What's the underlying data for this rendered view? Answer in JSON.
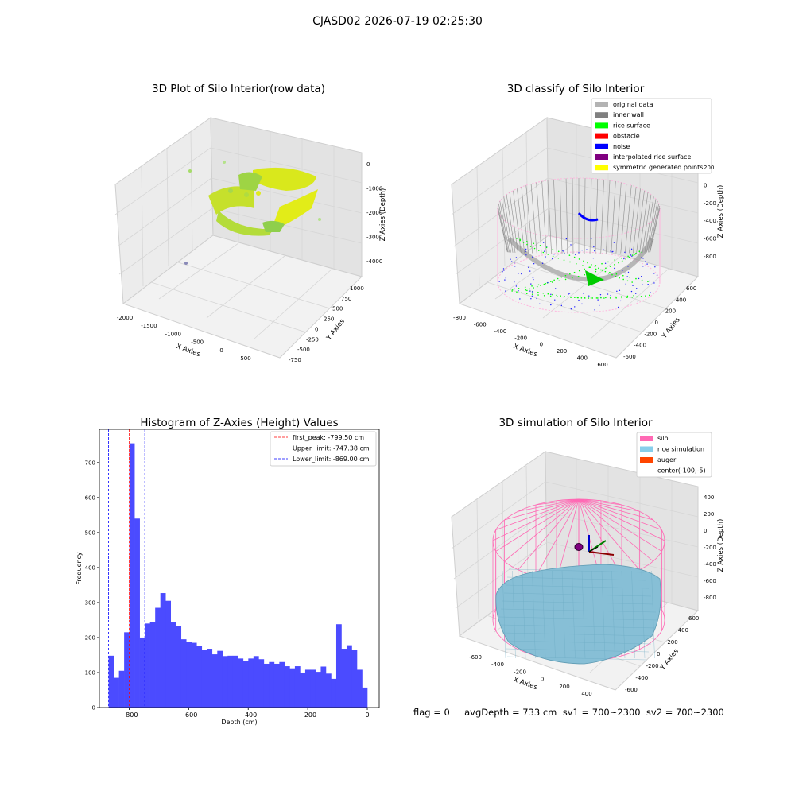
{
  "figure": {
    "suptitle": "CJASD02 2026-07-19 02:25:30",
    "status_line": "flag = 0     avgDepth = 733 cm  sv1 = 700~2300  sv2 = 700~2300"
  },
  "colors": {
    "pane_grey": "#eeeeee",
    "grid": "#d6d6d6",
    "hist_blue": "#4b4bff",
    "peak_red": "#ff0000",
    "limit_blue": "#0000ff",
    "silo_pink": "#ff69b4",
    "rice_sim_blue": "#87ceeb",
    "auger_orange": "#ff4500"
  },
  "plots": {
    "raw": {
      "title": "3D Plot of Silo Interior(row data)",
      "xlabel": "X Axies",
      "ylabel": "Y Axies",
      "zlabel": "Z Axies (Depth)",
      "x_ticks": [
        "-2000",
        "-1500",
        "-1000",
        "-500",
        "0",
        "500"
      ],
      "y_ticks": [
        "-750",
        "-500",
        "-250",
        "0",
        "250",
        "500",
        "750",
        "1000"
      ],
      "z_ticks": [
        "0",
        "-1000",
        "-2000",
        "-3000",
        "-4000"
      ]
    },
    "classify": {
      "title": "3D classify of Silo Interior",
      "xlabel": "X Axies",
      "ylabel": "Y Axies",
      "zlabel": "Z Axies (Depth)",
      "x_ticks": [
        "-800",
        "-600",
        "-400",
        "-200",
        "0",
        "200",
        "400",
        "600"
      ],
      "y_ticks": [
        "-600",
        "-400",
        "-200",
        "0",
        "200",
        "400",
        "600"
      ],
      "z_ticks": [
        "200",
        "0",
        "-200",
        "-400",
        "-600",
        "-800"
      ],
      "legend": [
        {
          "label": "original data",
          "color": "#b3b3b3"
        },
        {
          "label": "inner wall",
          "color": "#808080"
        },
        {
          "label": "rice surface",
          "color": "#00ff00"
        },
        {
          "label": "obstacle",
          "color": "#ff0000"
        },
        {
          "label": "noise",
          "color": "#0000ff"
        },
        {
          "label": "interpolated rice surface",
          "color": "#800080"
        },
        {
          "label": "symmetric generated points",
          "color": "#ffff00"
        }
      ]
    },
    "simulation": {
      "title": "3D simulation of Silo Interior",
      "xlabel": "X Axies",
      "ylabel": "Y Axies",
      "zlabel": "Z Axies (Depth)",
      "x_ticks": [
        "-600",
        "-400",
        "-200",
        "0",
        "200",
        "400"
      ],
      "y_ticks": [
        "-600",
        "-400",
        "-200",
        "0",
        "200",
        "400",
        "600"
      ],
      "z_ticks": [
        "400",
        "200",
        "0",
        "-200",
        "-400",
        "-600",
        "-800"
      ],
      "legend": [
        {
          "label": "silo",
          "color": "#ff69b4"
        },
        {
          "label": "rice simulation",
          "color": "#87ceeb"
        },
        {
          "label": "auger",
          "color": "#ff4500"
        },
        {
          "label": "center(-100,-5)",
          "color": "none"
        }
      ]
    }
  },
  "chart_data": {
    "type": "bar",
    "title": "Histogram of Z-Axies (Height) Values",
    "xlabel": "Depth (cm)",
    "ylabel": "Frequency",
    "xlim": [
      -900,
      40
    ],
    "ylim": [
      0,
      795
    ],
    "x_ticks": [
      -800,
      -600,
      -400,
      -200,
      0
    ],
    "y_ticks": [
      0,
      100,
      200,
      300,
      400,
      500,
      600,
      700
    ],
    "bin_start": -869,
    "bin_width": 17.38,
    "values": [
      148,
      85,
      105,
      215,
      755,
      540,
      200,
      240,
      245,
      285,
      327,
      305,
      243,
      232,
      195,
      188,
      185,
      175,
      165,
      168,
      152,
      162,
      147,
      148,
      148,
      140,
      133,
      140,
      147,
      138,
      125,
      130,
      125,
      130,
      118,
      112,
      118,
      100,
      108,
      108,
      102,
      117,
      97,
      82,
      238,
      168,
      178,
      165,
      108,
      57
    ],
    "reference_lines": [
      {
        "label": "first_peak: -799.50 cm",
        "x": -799.5,
        "color": "#ff0000"
      },
      {
        "label": "Upper_limit: -747.38 cm",
        "x": -747.38,
        "color": "#0000ff"
      },
      {
        "label": "Lower_limit: -869.00 cm",
        "x": -869.0,
        "color": "#0000ff"
      }
    ],
    "legend_position": "top-right"
  }
}
